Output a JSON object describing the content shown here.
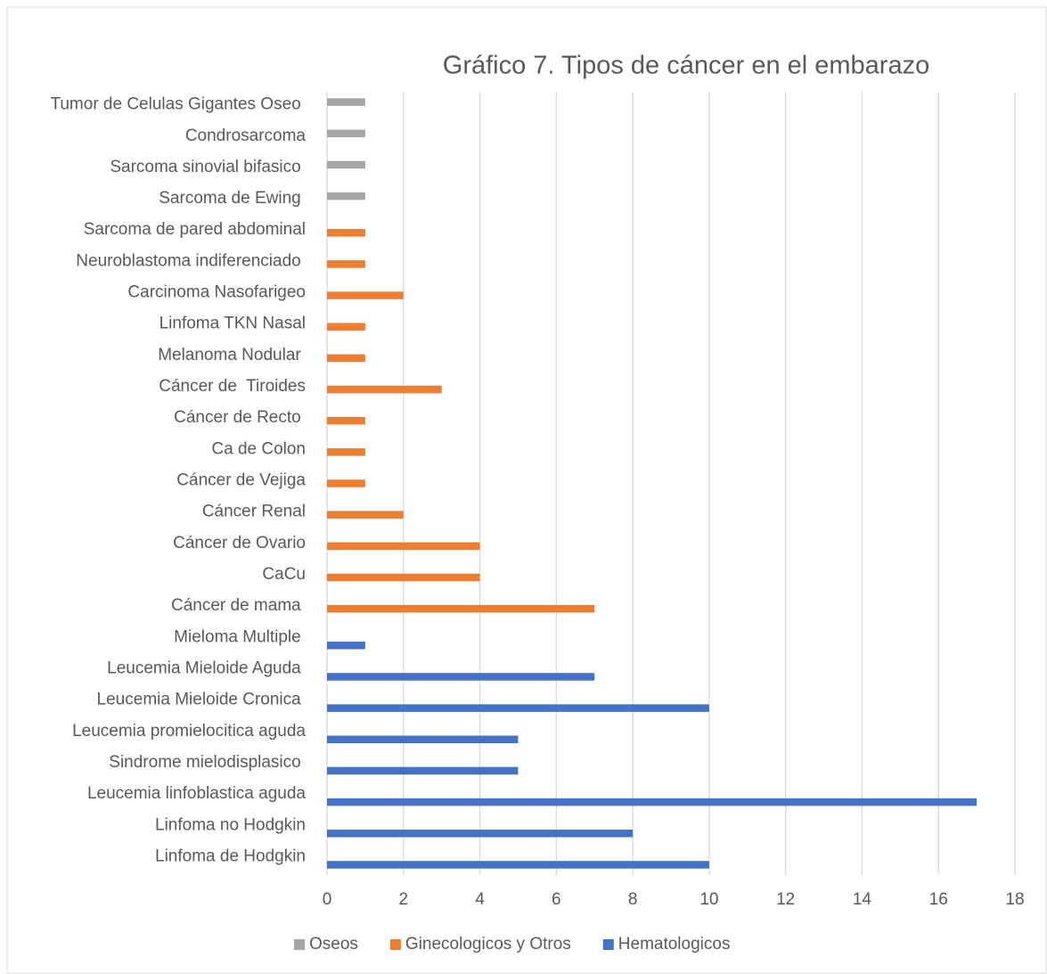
{
  "chart_data": {
    "type": "barh",
    "title": "Gráfico 7. Tipos de cáncer en el embarazo",
    "categories": [
      "Linfoma de Hodgkin",
      "Linfoma no Hodgkin",
      "Leucemia linfoblastica aguda",
      "Sindrome mielodisplasico ",
      "Leucemia promielocitica aguda",
      "Leucemia Mieloide Cronica ",
      "Leucemia Mieloide Aguda ",
      "Mieloma Multiple ",
      "Cáncer de mama ",
      "CaCu",
      "Cáncer de Ovario",
      "Cáncer Renal",
      "Cáncer de Vejiga",
      "Ca de Colon",
      "Cáncer de Recto ",
      "Cáncer de  Tiroides",
      "Melanoma Nodular ",
      "Linfoma TKN Nasal",
      "Carcinoma Nasofarigeo",
      "Neuroblastoma indiferenciado ",
      "Sarcoma de pared abdominal",
      "Sarcoma de Ewing ",
      "Sarcoma sinovial bifasico ",
      "Condrosarcoma",
      "Tumor de Celulas Gigantes Oseo "
    ],
    "series": [
      {
        "name": "Oseos",
        "color": "#a5a5a5",
        "values": [
          null,
          null,
          null,
          null,
          null,
          null,
          null,
          null,
          null,
          null,
          null,
          null,
          null,
          null,
          null,
          null,
          null,
          null,
          null,
          null,
          null,
          1,
          1,
          1,
          1
        ]
      },
      {
        "name": "Ginecologicos y Otros",
        "color": "#ed7d31",
        "values": [
          null,
          null,
          null,
          null,
          null,
          null,
          null,
          null,
          7,
          4,
          4,
          2,
          1,
          1,
          1,
          3,
          1,
          1,
          2,
          1,
          1,
          null,
          null,
          null,
          null
        ]
      },
      {
        "name": "Hematologicos",
        "color": "#4472c4",
        "values": [
          10,
          8,
          17,
          5,
          5,
          10,
          7,
          1,
          null,
          null,
          null,
          null,
          null,
          null,
          null,
          null,
          null,
          null,
          null,
          null,
          null,
          null,
          null,
          null,
          null
        ]
      }
    ],
    "xlim": [
      0,
      18
    ],
    "xticks": [
      0,
      2,
      4,
      6,
      8,
      10,
      12,
      14,
      16,
      18
    ],
    "grid": true,
    "legend": "bottom"
  }
}
